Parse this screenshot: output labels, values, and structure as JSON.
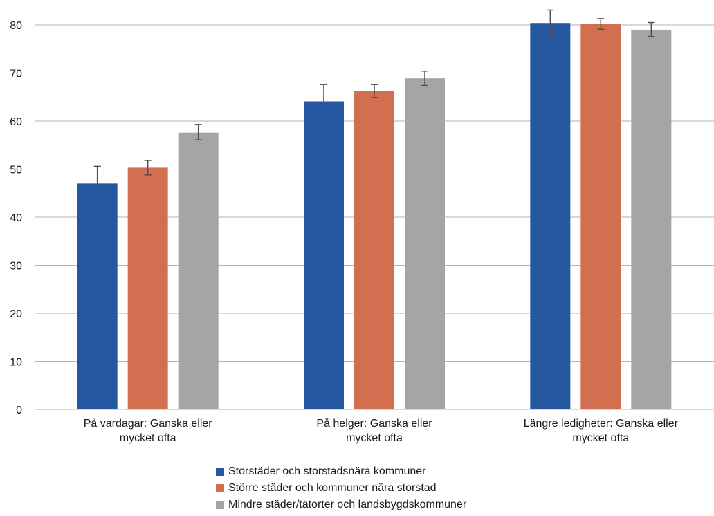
{
  "chart_data": {
    "type": "bar",
    "categories": [
      [
        "På vardagar: Ganska eller",
        "mycket ofta"
      ],
      [
        "På helger: Ganska eller",
        "mycket ofta"
      ],
      [
        "Längre ledigheter: Ganska eller",
        "mycket ofta"
      ]
    ],
    "series": [
      {
        "name": "Storstäder och storstadsnära kommuner",
        "color": "#2457a0",
        "values": [
          47.0,
          64.1,
          80.4
        ],
        "error_low": [
          43.4,
          60.8,
          77.5
        ],
        "error_high": [
          50.6,
          67.6,
          83.1
        ]
      },
      {
        "name": "Större städer och kommuner nära storstad",
        "color": "#d36f51",
        "values": [
          50.3,
          66.3,
          80.2
        ],
        "error_low": [
          48.8,
          64.9,
          79.1
        ],
        "error_high": [
          51.8,
          67.6,
          81.3
        ]
      },
      {
        "name": "Mindre städer/tätorter och landsbygdskommuner",
        "color": "#a5a5a5",
        "values": [
          57.6,
          68.9,
          79.0
        ],
        "error_low": [
          56.1,
          67.4,
          77.6
        ],
        "error_high": [
          59.3,
          70.4,
          80.5
        ]
      }
    ],
    "yticks": [
      "0",
      "10",
      "20",
      "30",
      "40",
      "50",
      "60",
      "70",
      "80"
    ],
    "ylim": [
      0,
      80
    ],
    "grid": true,
    "legend_position": "bottom",
    "gridline_color": "#b3b3b3",
    "errorbar_color": "#505050"
  }
}
